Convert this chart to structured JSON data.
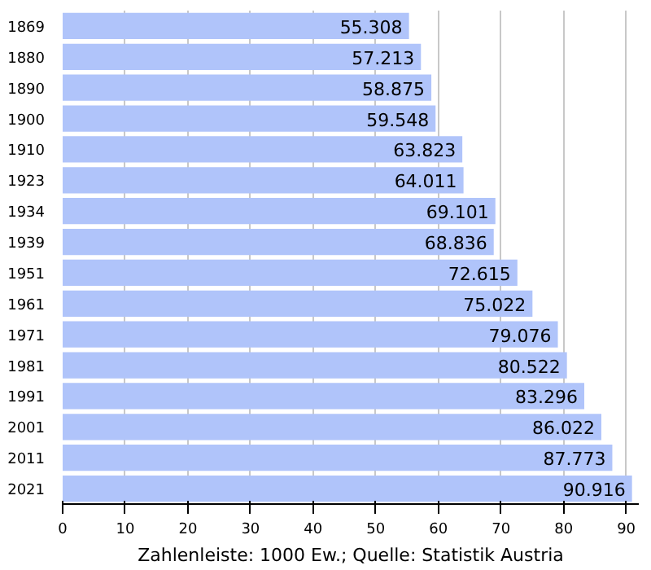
{
  "chart_data": {
    "type": "bar",
    "orientation": "horizontal",
    "categories": [
      "1869",
      "1880",
      "1890",
      "1900",
      "1910",
      "1923",
      "1934",
      "1939",
      "1951",
      "1961",
      "1971",
      "1981",
      "1991",
      "2001",
      "2011",
      "2021"
    ],
    "values": [
      55.308,
      57.213,
      58.875,
      59.548,
      63.823,
      64.011,
      69.101,
      68.836,
      72.615,
      75.022,
      79.076,
      80.522,
      83.296,
      86.022,
      87.773,
      90.916
    ],
    "color": "#b0c4fa",
    "data_labels": true,
    "xlim": [
      0,
      92
    ],
    "xticks": [
      0,
      10,
      20,
      30,
      40,
      50,
      60,
      70,
      80,
      90
    ],
    "grid": "x",
    "xlabel": "Zahlenleiste: 1000 Ew.; Quelle: Statistik Austria"
  }
}
